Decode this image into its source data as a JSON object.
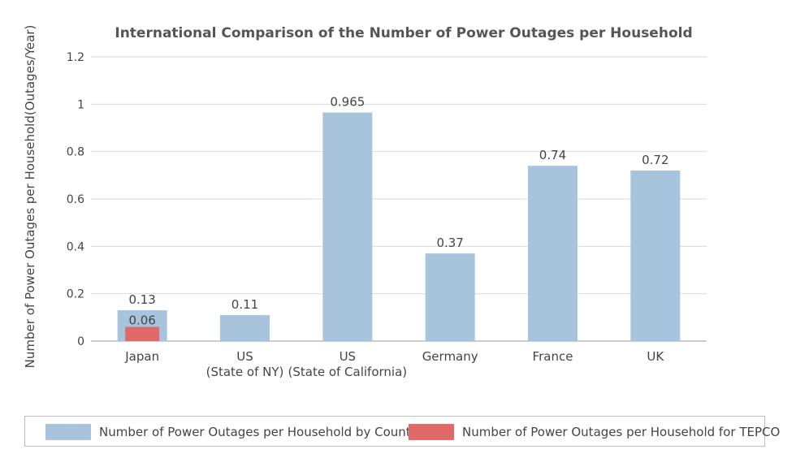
{
  "chart_data": {
    "type": "bar",
    "title": "International Comparison of the Number of Power Outages per Household",
    "ylabel": "Number of Power Outages per Household(Outages/Year)",
    "xlabel": "",
    "ylim": [
      0,
      1.2
    ],
    "yticks": [
      "0",
      "0.2",
      "0.4",
      "0.6",
      "0.8",
      "1",
      "1.2"
    ],
    "grid": true,
    "legend_position": "bottom",
    "categories": [
      [
        "Japan"
      ],
      [
        "US",
        "(State of NY)"
      ],
      [
        "US",
        "(State of California)"
      ],
      [
        "Germany"
      ],
      [
        "France"
      ],
      [
        "UK"
      ]
    ],
    "series": [
      {
        "name": "Number of Power Outages per Household by Country",
        "color": "#a8c4dc",
        "values": [
          0.13,
          0.11,
          0.965,
          0.37,
          0.74,
          0.72
        ],
        "labels": [
          "0.13",
          "0.11",
          "0.965",
          "0.37",
          "0.74",
          "0.72"
        ]
      },
      {
        "name": "Number of Power Outages per Household for TEPCO",
        "color": "#e06a6a",
        "values": [
          0.06,
          null,
          null,
          null,
          null,
          null
        ],
        "labels": [
          "0.06",
          "",
          "",
          "",
          "",
          ""
        ]
      }
    ]
  }
}
